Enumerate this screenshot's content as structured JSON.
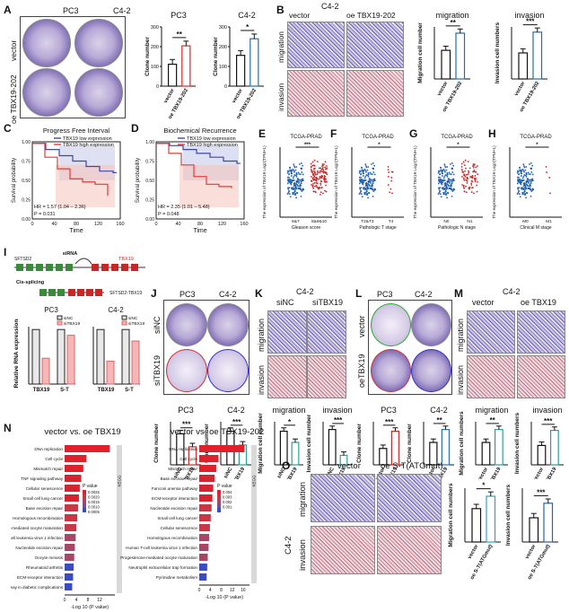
{
  "panels": [
    "A",
    "B",
    "C",
    "D",
    "E",
    "F",
    "G",
    "H",
    "I",
    "J",
    "K",
    "L",
    "M",
    "N",
    "O"
  ],
  "A": {
    "col_headers": [
      "PC3",
      "C4-2"
    ],
    "row_labels": [
      "vector",
      "oe TBX19-202"
    ],
    "chart_titles": [
      "PC3",
      "C4-2"
    ],
    "ylabel": "Clone number",
    "x_ticks": [
      "vector",
      "oe TBX19-202"
    ],
    "sig": [
      "**",
      "*"
    ],
    "yticks_pc3": [
      "0",
      "100",
      "200",
      "300"
    ],
    "yticks_c42": [
      "0",
      "100",
      "200",
      "300"
    ]
  },
  "B": {
    "cell_line": "C4-2",
    "col_headers": [
      "vector",
      "oe TBX19-202"
    ],
    "row_labels": [
      "migration",
      "invasion"
    ],
    "chart_titles": [
      "migration",
      "invasion"
    ],
    "ylabels": [
      "Migration cell number",
      "Invasion cell numbers"
    ],
    "x_ticks": [
      "vector",
      "oe TBX19-202"
    ],
    "sig": [
      "**",
      "***"
    ]
  },
  "C": {
    "title": "Progress Free Interval",
    "legend": [
      "TBX19 low expression",
      "TBX19 high expression"
    ],
    "ylabel": "Survival probability",
    "xlabel": "Time",
    "hr": "HR = 1.57 (1.04 – 2.36)",
    "p": "P = 0.031",
    "x_ticks": [
      "0",
      "40",
      "80",
      "120",
      "160"
    ],
    "y_ticks": [
      "0.00",
      "0.25",
      "0.50",
      "0.75",
      "1.00"
    ]
  },
  "D": {
    "title": "Biochemical Recurrence",
    "legend": [
      "TBX19 low expression",
      "TBX19 high expression"
    ],
    "ylabel": "Survival probability",
    "xlabel": "Time",
    "hr": "HR = 2.35 (1.01 – 5.48)",
    "p": "P = 0.048",
    "x_ticks": [
      "0",
      "40",
      "80",
      "120",
      "160"
    ],
    "y_ticks": [
      "0.00",
      "0.25",
      "0.50",
      "0.75",
      "1.00"
    ]
  },
  "E": {
    "title": "TCGA-PRAD",
    "ylabel": "The expression of TBX19 Log2(TPM+1)",
    "xlabel": "Gleason score",
    "groups": [
      "6&7",
      "8&9&10"
    ],
    "sig": "***"
  },
  "F": {
    "title": "TCGA-PRAD",
    "ylabel": "The expression of TBX19 Log2(TPM+1)",
    "xlabel": "Pathologic T stage",
    "groups": [
      "T2&T3",
      "T4"
    ],
    "sig": "*"
  },
  "G": {
    "title": "TCGA-PRAD",
    "ylabel": "The expression of TBX19 Log2(TPM+1)",
    "xlabel": "Pathologic N stage",
    "groups": [
      "N0",
      "N1"
    ],
    "sig": "*"
  },
  "H": {
    "title": "TCGA-PRAD",
    "ylabel": "The expression of TBX19 Log2(TPM+1)",
    "xlabel": "Clinical M stage",
    "groups": [
      "M0",
      "M1"
    ],
    "sig": "*"
  },
  "I": {
    "gene_left": "SFTSD2",
    "gene_right": "TBX19",
    "sirna": "siRNA",
    "cis": "Cis-splicing",
    "fusion": "SFTSD2-TBX19",
    "chart_titles": [
      "PC3",
      "C4-2"
    ],
    "legend": [
      "siNC",
      "siTBX19"
    ],
    "ylabel": "Relative RNA expression",
    "x_ticks": [
      "TBX19",
      "S-T"
    ]
  },
  "J": {
    "col_headers": [
      "PC3",
      "C4-2"
    ],
    "row_labels": [
      "siNC",
      "siTBX19"
    ],
    "chart_titles": [
      "PC3",
      "C4-2"
    ],
    "ylabel": "Clone number",
    "x_ticks": [
      "siNC",
      "siTBX19"
    ],
    "sig": [
      "***",
      "***"
    ]
  },
  "K": {
    "cell_line": "C4-2",
    "col_headers": [
      "siNC",
      "siTBX19"
    ],
    "row_labels": [
      "migration",
      "invasion"
    ],
    "chart_titles": [
      "migration",
      "invasion"
    ],
    "ylabels": [
      "Migration cell number",
      "Invasion cell number"
    ],
    "x_ticks": [
      "siNC",
      "siTBX19"
    ],
    "sig": [
      "*",
      "***"
    ]
  },
  "L": {
    "col_headers": [
      "PC3",
      "C4-2"
    ],
    "row_labels": [
      "vector",
      "oeTBX19"
    ],
    "chart_titles": [
      "PC3",
      "C4-2"
    ],
    "ylabel": "Clone number",
    "x_ticks": [
      "vector",
      "oeTBX19"
    ],
    "sig": [
      "***",
      "**"
    ]
  },
  "M": {
    "cell_line": "C4-2",
    "col_headers": [
      "vector",
      "oe TBX19"
    ],
    "row_labels": [
      "migration",
      "invasion"
    ],
    "chart_titles": [
      "migration",
      "invasion"
    ],
    "ylabels": [
      "Migration cell numbers",
      "Invasion cell numbers"
    ],
    "x_ticks": [
      "vector",
      "oeTBX19"
    ],
    "sig": [
      "**",
      "***"
    ]
  },
  "N": {
    "left_title": "vector vs. oe TBX19",
    "right_title": "vector vs. oe TBX19-202",
    "xlabel": "-Log 10 (P value)",
    "side_label": "KEGG",
    "legend_title": "P value",
    "left_terms": [
      "DNA replication",
      "Cell cycle",
      "Mismatch repair",
      "TNF signaling pathway",
      "Cellular senescence",
      "Small cell lung cancer",
      "Base excision repair",
      "Homologous recombination",
      "Progesterone-mediated oocyte maturation",
      "Human T-cell leukemia virus 1 infection",
      "Nucleotide excision repair",
      "Oocyte meiosis",
      "Rheumatoid arthritis",
      "ECM-receptor interaction",
      "AGE-RAGE signaling pathway in diabetic complications"
    ],
    "left_values": [
      15.5,
      7.5,
      6.4,
      5.7,
      5.2,
      4.9,
      4.6,
      4.3,
      4.0,
      3.8,
      3.5,
      3.3,
      3.1,
      2.9,
      2.6
    ],
    "left_legend_ticks": [
      "0.0025",
      "0.0020",
      "0.0015",
      "0.0010",
      "0.0005"
    ],
    "left_x_ticks": [
      "0",
      "4",
      "8",
      "12"
    ],
    "right_terms": [
      "DNA replication",
      "Cell cycle",
      "Mismatch repair",
      "Base excision repair",
      "Fanconi anemia pathway",
      "ECM-receptor interaction",
      "Nucleotide excision repair",
      "Small cell lung cancer",
      "Cellular senescence",
      "Homologous recombination",
      "Human T-cell leukemia virus 1 infection",
      "Progesterone-mediated oocyte maturation",
      "Neutrophil extracellular trap formation",
      "Pyrimidine metabolism"
    ],
    "right_values": [
      16.5,
      7.0,
      6.2,
      5.6,
      5.1,
      4.8,
      4.5,
      4.2,
      3.9,
      3.6,
      3.4,
      3.1,
      2.9,
      2.7
    ],
    "right_legend_ticks": [
      "0.004",
      "0.003",
      "0.002",
      "0.001"
    ],
    "right_x_ticks": [
      "0",
      "4",
      "8",
      "12",
      "16"
    ]
  },
  "O": {
    "col_headers": [
      "vector",
      "oe S-T(ATGmut)"
    ],
    "row_labels": [
      "migration",
      "invasion"
    ],
    "cell_line": "C4-2",
    "ylabels": [
      "Migration cell numbers",
      "Invasion cell numbers"
    ],
    "x_ticks": [
      "vector",
      "oe S-T(ATGmut)"
    ],
    "sig": [
      "*",
      "***"
    ]
  }
}
